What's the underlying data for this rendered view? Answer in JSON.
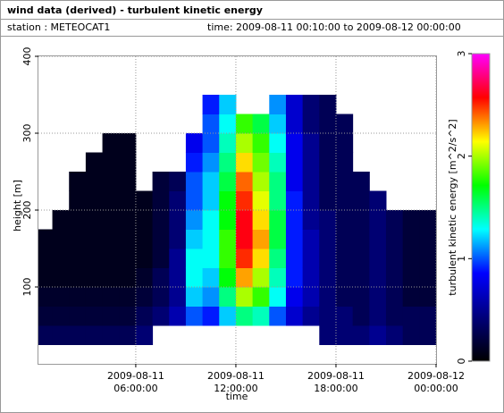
{
  "chart_data": {
    "type": "heatmap",
    "title": "wind data (derived) - turbulent kinetic energy",
    "station": "station : METEOCAT1",
    "period": "time: 2009-08-11 00:10:00 to 2009-08-12 00:00:00",
    "x_label": "time",
    "y_label": "height [m]",
    "colorbar_label": "turbulent kinetic energy [m^2/s^2]",
    "xlim": [
      "2009-08-11 00:10:00",
      "2009-08-12 00:00:00"
    ],
    "xticks": [
      "2009-08-11 06:00:00",
      "2009-08-11 12:00:00",
      "2009-08-11 18:00:00",
      "2009-08-12 00:00:00"
    ],
    "ylim": [
      0,
      400
    ],
    "yticks": [
      100,
      200,
      300,
      400
    ],
    "zlim": [
      0,
      3
    ],
    "zticks": [
      0,
      1,
      2,
      3
    ],
    "colormap": [
      "#000000",
      "#00007a",
      "#0000ff",
      "#00ffff",
      "#00ff00",
      "#ffff00",
      "#ff0000",
      "#ff00ff"
    ],
    "grid": true,
    "x": [
      "2009-08-11 00:10:00",
      "2009-08-11 01:00:00",
      "2009-08-11 02:00:00",
      "2009-08-11 03:00:00",
      "2009-08-11 04:00:00",
      "2009-08-11 05:00:00",
      "2009-08-11 06:00:00",
      "2009-08-11 07:00:00",
      "2009-08-11 08:00:00",
      "2009-08-11 09:00:00",
      "2009-08-11 10:00:00",
      "2009-08-11 11:00:00",
      "2009-08-11 12:00:00",
      "2009-08-11 13:00:00",
      "2009-08-11 14:00:00",
      "2009-08-11 15:00:00",
      "2009-08-11 16:00:00",
      "2009-08-11 17:00:00",
      "2009-08-11 18:00:00",
      "2009-08-11 19:00:00",
      "2009-08-11 20:00:00",
      "2009-08-11 21:00:00",
      "2009-08-11 22:00:00",
      "2009-08-11 23:00:00"
    ],
    "y": [
      25,
      50,
      75,
      100,
      125,
      150,
      175,
      200,
      225,
      250,
      275,
      300,
      325,
      350,
      375
    ],
    "z": [
      [
        0.3,
        0.2,
        0.15,
        0.1,
        0.1,
        0.1,
        null,
        null,
        null,
        null,
        null,
        null,
        null,
        null,
        null
      ],
      [
        0.3,
        0.2,
        0.15,
        0.1,
        0.1,
        0.1,
        0.1,
        null,
        null,
        null,
        null,
        null,
        null,
        null,
        null
      ],
      [
        0.3,
        0.2,
        0.15,
        0.1,
        0.1,
        0.1,
        0.1,
        0.1,
        0.1,
        null,
        null,
        null,
        null,
        null,
        null
      ],
      [
        0.3,
        0.2,
        0.15,
        0.1,
        0.1,
        0.1,
        0.1,
        0.1,
        0.1,
        0.1,
        null,
        null,
        null,
        null,
        null
      ],
      [
        0.3,
        0.2,
        0.15,
        0.1,
        0.1,
        0.1,
        0.1,
        0.1,
        0.1,
        0.1,
        0.1,
        null,
        null,
        null,
        null
      ],
      [
        0.3,
        0.2,
        0.15,
        0.1,
        0.1,
        0.1,
        0.1,
        0.1,
        0.1,
        0.1,
        0.1,
        null,
        null,
        null,
        null
      ],
      [
        0.4,
        0.3,
        0.2,
        0.15,
        0.1,
        0.1,
        0.1,
        0.1,
        null,
        null,
        null,
        null,
        null,
        null,
        null
      ],
      [
        null,
        0.4,
        0.3,
        0.3,
        0.2,
        0.2,
        0.2,
        0.2,
        0.2,
        null,
        null,
        null,
        null,
        null,
        null
      ],
      [
        null,
        0.6,
        0.5,
        0.5,
        0.5,
        0.4,
        0.4,
        0.4,
        0.3,
        null,
        null,
        null,
        null,
        null,
        null
      ],
      [
        null,
        1.0,
        1.2,
        1.3,
        1.3,
        1.2,
        1.1,
        1.0,
        1.0,
        0.9,
        0.8,
        null,
        null,
        null,
        null
      ],
      [
        null,
        0.9,
        1.1,
        1.2,
        1.3,
        1.3,
        1.3,
        1.2,
        1.2,
        1.1,
        1.0,
        1.0,
        0.9,
        null,
        null
      ],
      [
        null,
        1.2,
        1.5,
        1.7,
        1.8,
        1.8,
        1.7,
        1.7,
        1.6,
        1.5,
        1.4,
        1.3,
        1.2,
        null,
        null
      ],
      [
        null,
        1.5,
        2.0,
        2.3,
        2.5,
        2.6,
        2.6,
        2.5,
        2.4,
        2.2,
        2.0,
        1.8,
        null,
        null,
        null
      ],
      [
        null,
        1.4,
        1.8,
        2.0,
        2.2,
        2.3,
        2.2,
        2.1,
        2.0,
        1.9,
        1.8,
        1.6,
        null,
        null,
        null
      ],
      [
        null,
        1.0,
        1.3,
        1.4,
        1.5,
        1.6,
        1.6,
        1.5,
        1.5,
        1.4,
        1.3,
        1.2,
        1.1,
        null,
        null
      ],
      [
        null,
        0.7,
        0.8,
        0.9,
        0.9,
        0.9,
        0.9,
        0.9,
        0.8,
        0.8,
        0.8,
        0.7,
        0.7,
        null,
        null
      ],
      [
        null,
        0.5,
        0.6,
        0.6,
        0.6,
        0.6,
        0.5,
        0.5,
        0.5,
        0.5,
        0.5,
        0.4,
        0.4,
        null,
        null
      ],
      [
        0.4,
        0.4,
        0.4,
        0.4,
        0.4,
        0.4,
        0.4,
        0.3,
        0.3,
        0.3,
        0.3,
        0.3,
        0.3,
        null,
        null
      ],
      [
        0.4,
        0.4,
        0.3,
        0.3,
        0.3,
        0.3,
        0.3,
        0.3,
        0.3,
        0.3,
        0.3,
        0.3,
        null,
        null,
        null
      ],
      [
        0.4,
        0.3,
        0.3,
        0.3,
        0.3,
        0.3,
        0.3,
        0.3,
        0.3,
        null,
        null,
        null,
        null,
        null,
        null
      ],
      [
        0.5,
        0.4,
        0.4,
        0.4,
        0.4,
        0.4,
        0.4,
        0.4,
        null,
        null,
        null,
        null,
        null,
        null,
        null
      ],
      [
        0.4,
        0.3,
        0.3,
        0.3,
        0.3,
        0.3,
        0.3,
        null,
        null,
        null,
        null,
        null,
        null,
        null,
        null
      ],
      [
        0.3,
        0.3,
        0.2,
        0.2,
        0.2,
        0.2,
        0.2,
        null,
        null,
        null,
        null,
        null,
        null,
        null,
        null
      ],
      [
        0.3,
        0.3,
        0.2,
        0.2,
        0.2,
        0.2,
        0.2,
        null,
        null,
        null,
        null,
        null,
        null,
        null,
        null
      ]
    ]
  }
}
